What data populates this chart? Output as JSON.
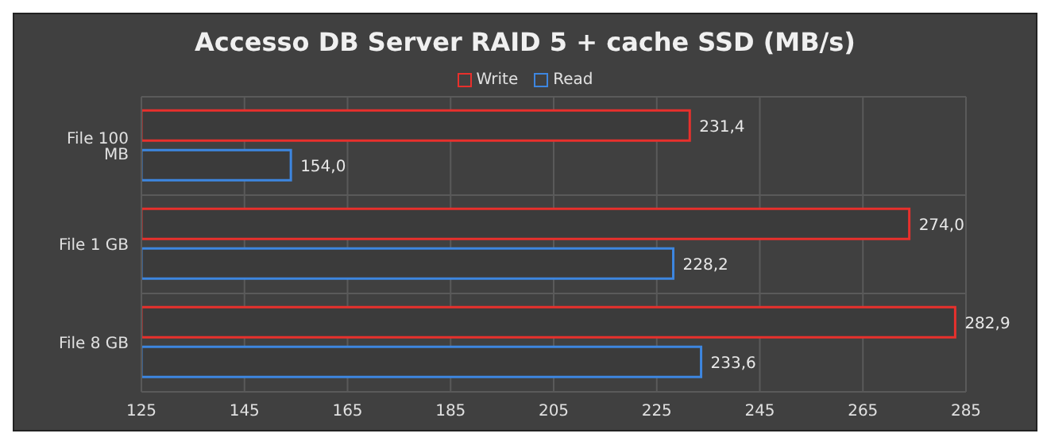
{
  "chart_data": {
    "type": "bar",
    "orientation": "horizontal",
    "title": "Accesso DB Server RAID 5 + cache SSD (MB/s)",
    "categories": [
      "File 100 MB",
      "File 1 GB",
      "File 8 GB"
    ],
    "series": [
      {
        "name": "Write",
        "color": "#e8302c",
        "values": [
          231.4,
          274.0,
          282.9
        ],
        "value_labels": [
          "231,4",
          "274,0",
          "282,9"
        ]
      },
      {
        "name": "Read",
        "color": "#3d86e0",
        "values": [
          154.0,
          228.2,
          233.6
        ],
        "value_labels": [
          "154,0",
          "228,2",
          "233,6"
        ]
      }
    ],
    "xlim": [
      125,
      285
    ],
    "xticks": [
      125,
      145,
      165,
      185,
      205,
      225,
      245,
      265,
      285
    ],
    "grid": true,
    "legend": "top"
  }
}
